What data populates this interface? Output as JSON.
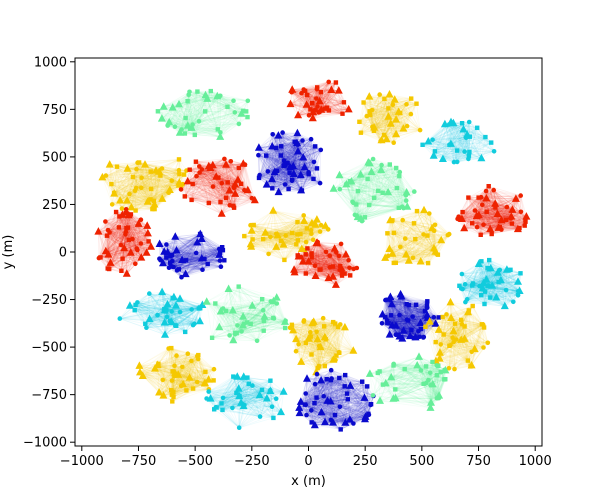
{
  "chart_data": {
    "type": "scatter",
    "title": "",
    "xlabel": "x (m)",
    "ylabel": "y (m)",
    "xlim": [
      -1030,
      1030
    ],
    "ylim": [
      -1020,
      1020
    ],
    "xticks": [
      -1000,
      -750,
      -500,
      -250,
      0,
      250,
      500,
      750,
      1000
    ],
    "yticks": [
      -1000,
      -750,
      -500,
      -250,
      0,
      250,
      500,
      750,
      1000
    ],
    "xtick_labels": [
      "−1000",
      "−750",
      "−500",
      "−250",
      "0",
      "250",
      "500",
      "750",
      "1000"
    ],
    "ytick_labels": [
      "−1000",
      "−750",
      "−500",
      "−250",
      "0",
      "250",
      "500",
      "750",
      "1000"
    ],
    "grid": false,
    "legend": "none",
    "marker_types": [
      "square",
      "triangle",
      "circle"
    ],
    "colors": {
      "red": "#ee2200",
      "yellow": "#f5c800",
      "green": "#66ee99",
      "blue": "#0a0acc",
      "cyan": "#11ccdd"
    },
    "clusters": [
      {
        "color": "red",
        "cx": 55,
        "cy": 800,
        "rx": 150,
        "ry": 110,
        "n": 34
      },
      {
        "color": "green",
        "cx": -450,
        "cy": 730,
        "rx": 220,
        "ry": 130,
        "n": 40
      },
      {
        "color": "yellow",
        "cx": 360,
        "cy": 700,
        "rx": 150,
        "ry": 150,
        "n": 36
      },
      {
        "color": "cyan",
        "cx": 680,
        "cy": 580,
        "rx": 190,
        "ry": 110,
        "n": 30
      },
      {
        "color": "yellow",
        "cx": -730,
        "cy": 380,
        "rx": 200,
        "ry": 180,
        "n": 48
      },
      {
        "color": "red",
        "cx": -390,
        "cy": 350,
        "rx": 180,
        "ry": 160,
        "n": 42
      },
      {
        "color": "blue",
        "cx": -80,
        "cy": 470,
        "rx": 170,
        "ry": 170,
        "n": 52
      },
      {
        "color": "green",
        "cx": 290,
        "cy": 330,
        "rx": 180,
        "ry": 180,
        "n": 42
      },
      {
        "color": "red",
        "cx": 820,
        "cy": 210,
        "rx": 170,
        "ry": 150,
        "n": 44
      },
      {
        "color": "yellow",
        "cx": -100,
        "cy": 90,
        "rx": 200,
        "ry": 140,
        "n": 42
      },
      {
        "color": "red",
        "cx": -820,
        "cy": 60,
        "rx": 130,
        "ry": 180,
        "n": 44
      },
      {
        "color": "blue",
        "cx": -520,
        "cy": -20,
        "rx": 170,
        "ry": 120,
        "n": 40
      },
      {
        "color": "yellow",
        "cx": 470,
        "cy": 60,
        "rx": 160,
        "ry": 170,
        "n": 36
      },
      {
        "color": "red",
        "cx": 70,
        "cy": -60,
        "rx": 150,
        "ry": 130,
        "n": 42
      },
      {
        "color": "cyan",
        "cx": 800,
        "cy": -170,
        "rx": 160,
        "ry": 130,
        "n": 40
      },
      {
        "color": "cyan",
        "cx": -650,
        "cy": -320,
        "rx": 200,
        "ry": 120,
        "n": 38
      },
      {
        "color": "green",
        "cx": -280,
        "cy": -340,
        "rx": 210,
        "ry": 160,
        "n": 38
      },
      {
        "color": "blue",
        "cx": 440,
        "cy": -340,
        "rx": 150,
        "ry": 130,
        "n": 50
      },
      {
        "color": "yellow",
        "cx": 40,
        "cy": -500,
        "rx": 170,
        "ry": 170,
        "n": 40
      },
      {
        "color": "yellow",
        "cx": 650,
        "cy": -440,
        "rx": 150,
        "ry": 180,
        "n": 40
      },
      {
        "color": "yellow",
        "cx": -580,
        "cy": -650,
        "rx": 180,
        "ry": 150,
        "n": 42
      },
      {
        "color": "cyan",
        "cx": -280,
        "cy": -780,
        "rx": 180,
        "ry": 150,
        "n": 36
      },
      {
        "color": "blue",
        "cx": 120,
        "cy": -780,
        "rx": 180,
        "ry": 170,
        "n": 50
      },
      {
        "color": "green",
        "cx": 450,
        "cy": -690,
        "rx": 190,
        "ry": 150,
        "n": 40
      }
    ]
  }
}
